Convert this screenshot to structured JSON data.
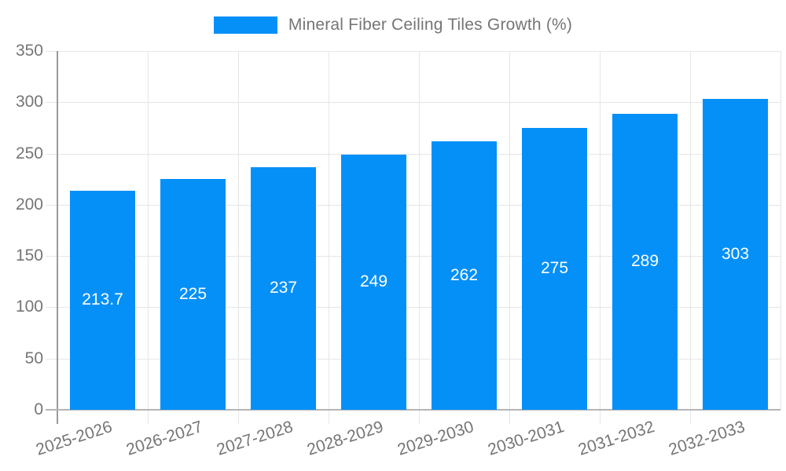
{
  "chart_data": {
    "type": "bar",
    "title": "Mineral Fiber Ceiling Tiles Growth (%)",
    "categories": [
      "2025-2026",
      "2026-2027",
      "2027-2028",
      "2028-2029",
      "2029-2030",
      "2030-2031",
      "2031-2032",
      "2032-2033"
    ],
    "values": [
      213.7,
      225,
      237,
      249,
      262,
      275,
      289,
      303
    ],
    "value_labels": [
      "213.7",
      "225",
      "237",
      "249",
      "262",
      "275",
      "289",
      "303"
    ],
    "xlabel": "",
    "ylabel": "",
    "ylim": [
      0,
      350
    ],
    "yticks": [
      0,
      50,
      100,
      150,
      200,
      250,
      300,
      350
    ],
    "grid": true,
    "legend_position": "top",
    "bar_color": "#0590f8",
    "value_label_color": "#ffffff"
  },
  "legend": {
    "label": "Mineral Fiber Ceiling Tiles Growth (%)",
    "swatch_color": "#0590f8"
  },
  "colors": {
    "background": "#ffffff",
    "grid": "#e6e6e6",
    "axis": "#9a9a9a",
    "tick_text": "#757575"
  }
}
